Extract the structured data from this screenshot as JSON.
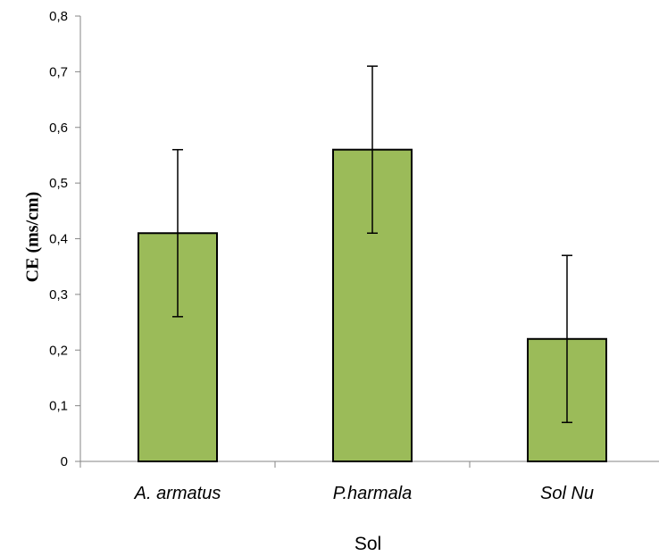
{
  "chart_data": {
    "type": "bar",
    "categories": [
      "A. armatus",
      "P.harmala",
      "Sol Nu"
    ],
    "values": [
      0.41,
      0.56,
      0.22
    ],
    "errors": [
      0.15,
      0.15,
      0.15
    ],
    "xlabel": "Sol",
    "ylabel": "CE (ms/cm)",
    "ylim": [
      0,
      0.8
    ],
    "yticks": [
      0,
      0.1,
      0.2,
      0.3,
      0.4,
      0.5,
      0.6,
      0.7,
      0.8
    ],
    "ytick_labels": [
      "0",
      "0,1",
      "0,2",
      "0,3",
      "0,4",
      "0,5",
      "0,6",
      "0,7",
      "0,8"
    ],
    "grid": false,
    "legend": "none",
    "colors": {
      "bar_fill": "#9bbb59",
      "bar_stroke": "#000000",
      "axis": "#868686"
    }
  }
}
